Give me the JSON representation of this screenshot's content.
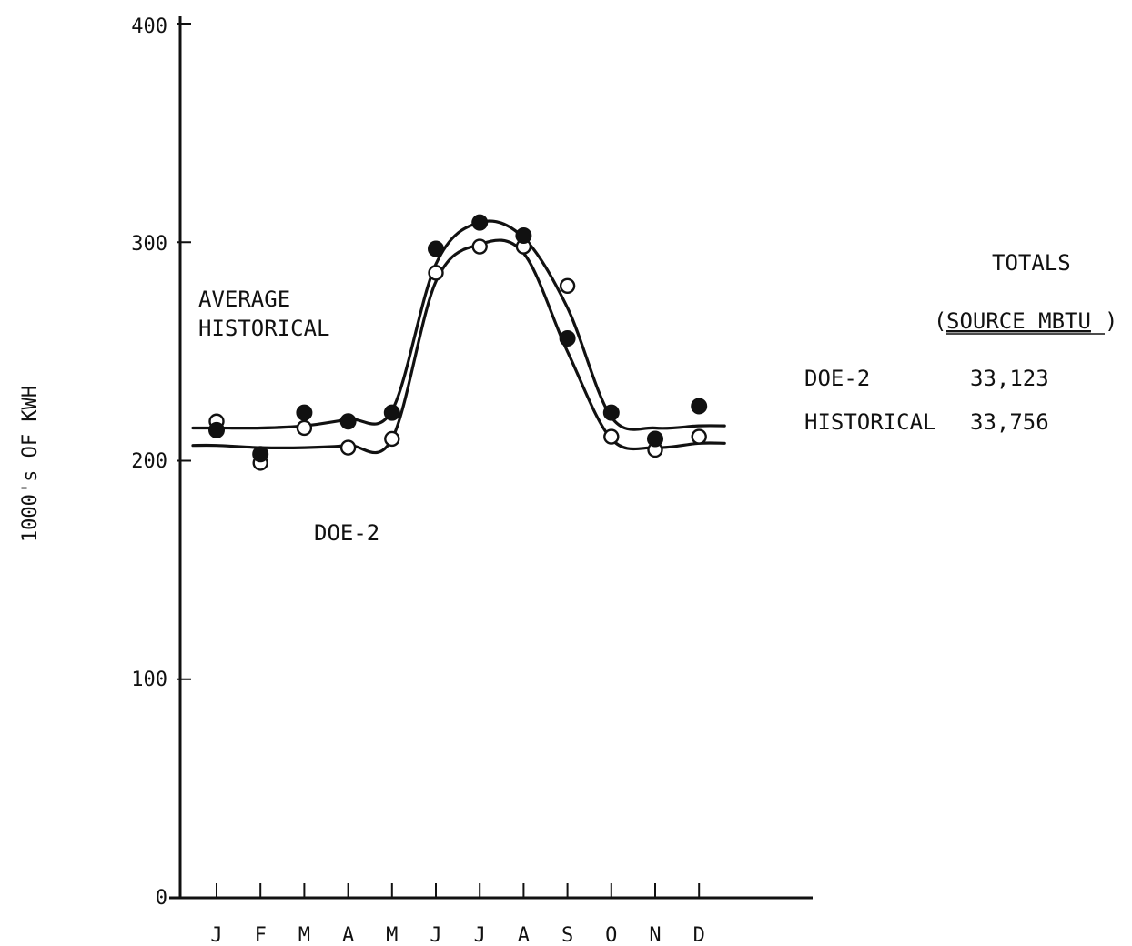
{
  "chart_data": {
    "type": "line",
    "title": "",
    "xlabel": "",
    "ylabel": "1000's OF KWH",
    "ylim": [
      0,
      400
    ],
    "yticks": [
      "0",
      "100",
      "200",
      "300",
      "400"
    ],
    "categories": [
      "J",
      "F",
      "M",
      "A",
      "M",
      "J",
      "J",
      "A",
      "S",
      "O",
      "N",
      "D"
    ],
    "grid": false,
    "series": [
      {
        "name": "AVERAGE HISTORICAL",
        "marker": "filled-circle",
        "values": [
          214,
          203,
          222,
          218,
          222,
          297,
          309,
          303,
          256,
          222,
          210,
          225
        ],
        "curve": [
          215,
          215,
          216,
          219,
          223,
          290,
          309,
          302,
          270,
          220,
          215,
          216
        ]
      },
      {
        "name": "DOE-2",
        "marker": "open-circle",
        "values": [
          218,
          199,
          215,
          206,
          210,
          286,
          298,
          298,
          280,
          211,
          205,
          211
        ],
        "curve": [
          207,
          206,
          206,
          207,
          210,
          282,
          299,
          295,
          250,
          210,
          206,
          208
        ]
      }
    ],
    "annotations": {
      "historical_label_line1": "AVERAGE",
      "historical_label_line2": "HISTORICAL",
      "doe2_label": "DOE-2"
    },
    "totals": {
      "heading": "TOTALS",
      "units_open": "(",
      "units": "SOURCE MBTU",
      "units_close": ")",
      "rows": [
        {
          "label": "DOE-2",
          "value": "33,123"
        },
        {
          "label": "HISTORICAL",
          "value": "33,756"
        }
      ]
    }
  },
  "colors": {
    "ink": "#111111",
    "background": "#ffffff"
  }
}
